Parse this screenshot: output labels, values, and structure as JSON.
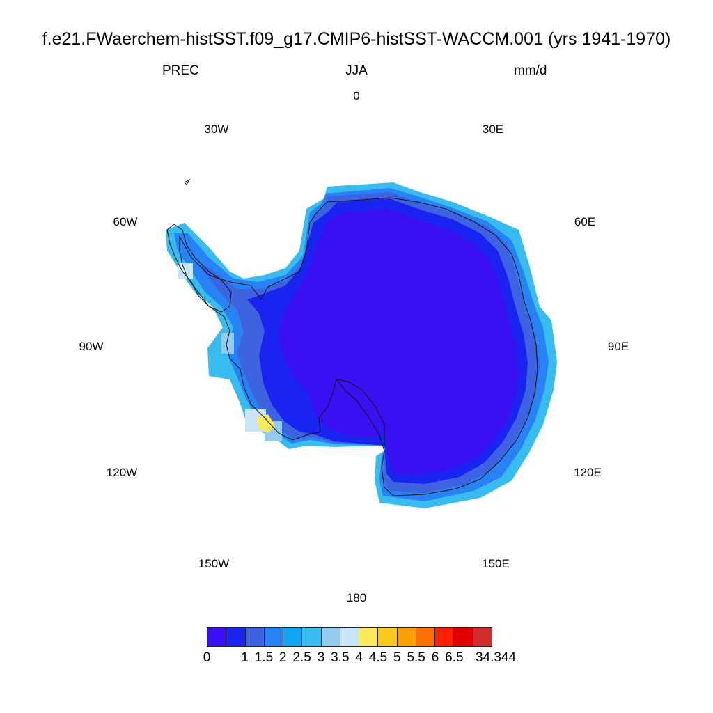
{
  "title": "f.e21.FWaerchem-histSST.f09_g17.CMIP6-histSST-WACCM.001 (yrs 1941-1970)",
  "subtitle": {
    "variable": "PREC",
    "season": "JJA",
    "units": "mm/d"
  },
  "longitude_labels": [
    "0",
    "30E",
    "60E",
    "90E",
    "120E",
    "150E",
    "180",
    "150W",
    "120W",
    "90W",
    "60W",
    "30W"
  ],
  "colorbar": {
    "colors": [
      "#3a0ff2",
      "#1a24f0",
      "#3d63e0",
      "#2783f5",
      "#0ca8f5",
      "#38bbee",
      "#92cbee",
      "#c8e4f6",
      "#fde95e",
      "#fbc81d",
      "#fb9f03",
      "#fd7001",
      "#fd2002",
      "#e00000",
      "#d42b2b"
    ],
    "tick_labels": [
      "0",
      "1",
      "1.5",
      "2",
      "2.5",
      "3",
      "3.5",
      "4",
      "4.5",
      "5",
      "5.5",
      "6",
      "6.5",
      "34.344"
    ]
  },
  "map": {
    "projection": "south polar stereographic",
    "region": "Antarctica",
    "field": "precipitation"
  }
}
